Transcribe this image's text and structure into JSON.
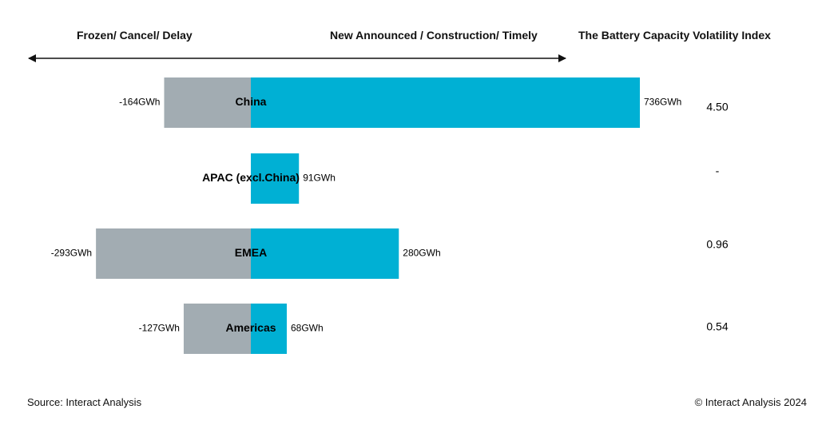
{
  "header": {
    "left_label": "Frozen/ Cancel/ Delay",
    "right_label": "New Announced / Construction/ Timely",
    "index_title": "The Battery Capacity Volatility Index"
  },
  "chart_data": {
    "type": "bar",
    "orientation": "horizontal-diverging",
    "categories": [
      "China",
      "APAC (excl.China)",
      "EMEA",
      "Americas"
    ],
    "series": [
      {
        "values": [
          -164,
          0,
          -293,
          -127
        ],
        "labels": [
          "-164GWh",
          "",
          "-293GWh",
          "-127GWh"
        ]
      },
      {
        "values": [
          736,
          91,
          280,
          68
        ],
        "labels": [
          "736GWh",
          "91GWh",
          "280GWh",
          "68GWh"
        ]
      }
    ],
    "unit": "GWh",
    "volatility_index": [
      "4.50",
      "-",
      "0.96",
      "0.54"
    ],
    "colors": {
      "negative": "#a2acb2",
      "positive": "#00b0d4"
    }
  },
  "footer": {
    "source": "Source: Interact Analysis",
    "copyright": "© Interact Analysis 2024"
  }
}
